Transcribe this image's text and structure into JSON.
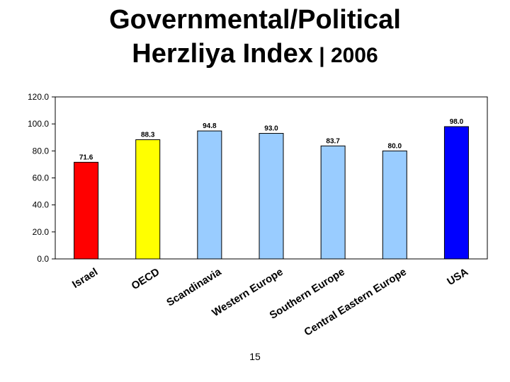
{
  "title_line1": "Governmental/Political",
  "title_line2_main": "Herzliya Index",
  "title_line2_sep": " | ",
  "title_line2_year": "2006",
  "page_number": "15",
  "chart_data": {
    "type": "bar",
    "title": "",
    "xlabel": "",
    "ylabel": "",
    "ylim": [
      0,
      120
    ],
    "y_ticks": [
      "0.0",
      "20.0",
      "40.0",
      "60.0",
      "80.0",
      "100.0",
      "120.0"
    ],
    "grid": false,
    "legend": "none",
    "categories": [
      "Israel",
      "OECD",
      "Scandinavia",
      "Western Europe",
      "Southern Europe",
      "Central Eastern Europe",
      "USA"
    ],
    "values": [
      71.6,
      88.3,
      94.8,
      93.0,
      83.7,
      80.0,
      98.0
    ],
    "value_labels": [
      "71.6",
      "88.3",
      "94.8",
      "93.0",
      "83.7",
      "80.0",
      "98.0"
    ],
    "colors": [
      "#ff0000",
      "#ffff00",
      "#99ccff",
      "#99ccff",
      "#99ccff",
      "#99ccff",
      "#0000ff"
    ]
  }
}
